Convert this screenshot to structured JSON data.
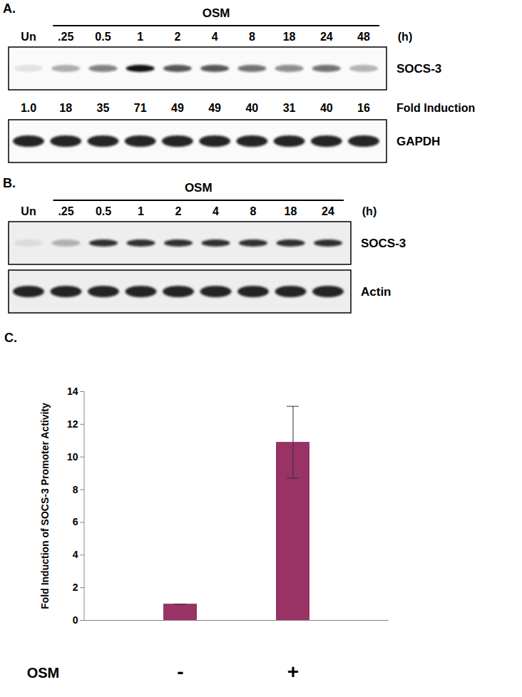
{
  "panels": [
    {
      "label": "A.",
      "treatment": "OSM",
      "lanes": [
        "Un",
        ".25",
        "0.5",
        "1",
        "2",
        "4",
        "8",
        "18",
        "24",
        "48"
      ],
      "unit": "(h)",
      "rows": [
        {
          "name": "SOCS-3"
        },
        {
          "name": "Fold Induction",
          "values": [
            1,
            18,
            35,
            71,
            49,
            49,
            40,
            31,
            40,
            16
          ],
          "value_labels": [
            "1.0",
            "18",
            "35",
            "71",
            "49",
            "49",
            "40",
            "31",
            "40",
            "16"
          ]
        },
        {
          "name": "GAPDH"
        }
      ]
    },
    {
      "label": "B.",
      "treatment": "OSM",
      "lanes": [
        "Un",
        ".25",
        "0.5",
        "1",
        "2",
        "4",
        "8",
        "18",
        "24"
      ],
      "unit": "(h)",
      "rows": [
        {
          "name": "SOCS-3"
        },
        {
          "name": "Actin"
        }
      ]
    }
  ],
  "chart_data": {
    "type": "bar",
    "title": "C.",
    "categories": [
      "-",
      "+"
    ],
    "values": [
      1,
      10.9
    ],
    "errors": [
      0,
      2.2
    ],
    "xlabel": "OSM",
    "ylabel": "Fold Induction of SOCS-3 Promoter Activity",
    "color": "#993366",
    "ylim": [
      0,
      14
    ],
    "yticks": [
      0,
      2,
      4,
      6,
      8,
      10,
      12,
      14
    ],
    "grid": false
  }
}
